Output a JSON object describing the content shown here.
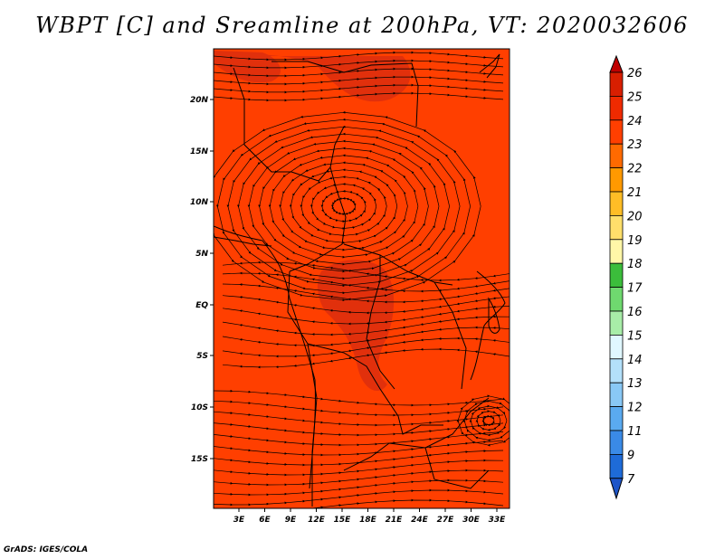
{
  "title": "WBPT [C] and Sreamline at 200hPa, VT: 2020032606",
  "credit": "GrADS: IGES/COLA",
  "map": {
    "lat_labels": [
      "20N",
      "15N",
      "10N",
      "5N",
      "EQ",
      "5S",
      "10S",
      "15S"
    ],
    "lon_labels": [
      "3E",
      "6E",
      "9E",
      "12E",
      "15E",
      "18E",
      "21E",
      "24E",
      "27E",
      "30E",
      "33E"
    ],
    "field_color": "#ff3f00",
    "patch_color": "#e1300c"
  },
  "colorbar": {
    "labels": [
      "26",
      "25",
      "24",
      "23",
      "22",
      "21",
      "20",
      "19",
      "18",
      "17",
      "16",
      "15",
      "14",
      "13",
      "12",
      "11",
      "9",
      "7"
    ],
    "colors": [
      "#c00000",
      "#d81f01",
      "#ef2a00",
      "#ff3f00",
      "#ff6a00",
      "#ff9900",
      "#ffbd26",
      "#ffdf6b",
      "#fff7a8",
      "#3bbd3b",
      "#6fd96f",
      "#a8eda8",
      "#e0f7ff",
      "#b3e0fa",
      "#89c8f5",
      "#5aaaf0",
      "#3a8ae6",
      "#1e6bd8",
      "#1d55c8"
    ]
  }
}
